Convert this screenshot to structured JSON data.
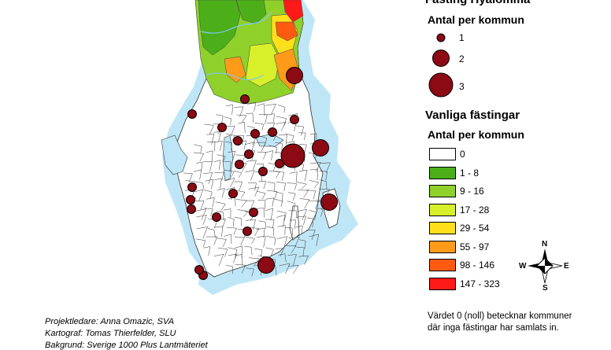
{
  "legend": {
    "title_hyalomma": "Fästing Hyalomma",
    "subtitle_hyalomma": "Antal per kommun",
    "size_items": [
      {
        "value": 1,
        "label": "1"
      },
      {
        "value": 2,
        "label": "2"
      },
      {
        "value": 3,
        "label": "3"
      }
    ],
    "title_common": "Vanliga fästingar",
    "subtitle_common": "Antal per kommun",
    "classes": [
      {
        "label": "0",
        "color": "#ffffff"
      },
      {
        "label": "1 - 8",
        "color": "#4caf1a"
      },
      {
        "label": "9 - 16",
        "color": "#8fd12a"
      },
      {
        "label": "17 - 28",
        "color": "#d8f02a"
      },
      {
        "label": "29 - 54",
        "color": "#ffe01a"
      },
      {
        "label": "55 - 97",
        "color": "#ff9a1a"
      },
      {
        "label": "98 - 146",
        "color": "#ff5a10"
      },
      {
        "label": "147 - 323",
        "color": "#ff1a1a"
      }
    ],
    "note_line1": "Värdet 0 (noll) betecknar kommuner",
    "note_line2": "där inga fästingar har samlats in."
  },
  "credits": {
    "line1": "Projektledare: Anna Omazic, SVA",
    "line2": "Kartograf: Tomas Thierfelder, SLU",
    "line3": "Bakgrund: Sverige 1000 Plus Lantmäteriet"
  },
  "compass": {
    "n": "N",
    "s": "S",
    "e": "E",
    "w": "W"
  },
  "colors": {
    "water": "#bfe6f7",
    "marker": "#8b0a14",
    "border": "#222222"
  },
  "markers": [
    1,
    1,
    1,
    1,
    1,
    1,
    1,
    1,
    1,
    1,
    1,
    1,
    1,
    1,
    1,
    1,
    1,
    1,
    1,
    2,
    2,
    2,
    3,
    2,
    1
  ]
}
